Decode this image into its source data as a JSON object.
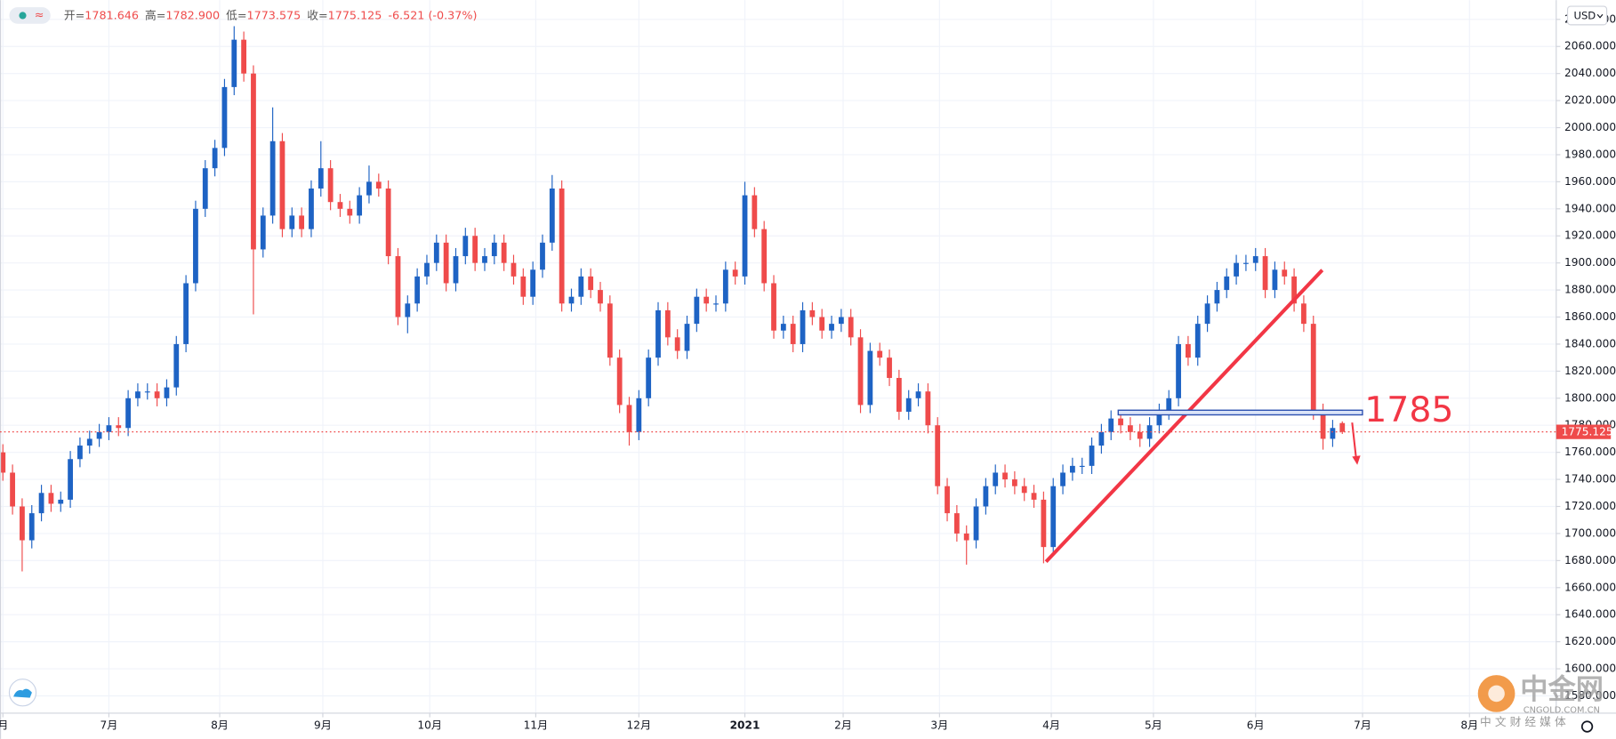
{
  "chart_data": {
    "type": "candlestick",
    "indicator_symbol": "≈",
    "header": [
      {
        "label": "开=",
        "value": "1781.646"
      },
      {
        "label": "高=",
        "value": "1782.900"
      },
      {
        "label": "低=",
        "value": "1773.575"
      },
      {
        "label": "收=",
        "value": "1775.125"
      }
    ],
    "change": "-6.521 (-0.37%)",
    "currency": "USD",
    "annotation": "1785",
    "last_price": 1775.125,
    "up_color": "#1e63c4",
    "down_color": "#ef4b4b",
    "grid": true,
    "ylim": [
      1567.2,
      2094.3
    ],
    "yticks": [
      {
        "value": 1580,
        "label": "1580.000"
      },
      {
        "value": 1600,
        "label": "1600.000"
      },
      {
        "value": 1620,
        "label": "1620.000"
      },
      {
        "value": 1640,
        "label": "1640.000"
      },
      {
        "value": 1660,
        "label": "1660.000"
      },
      {
        "value": 1680,
        "label": "1680.000"
      },
      {
        "value": 1700,
        "label": "1700.000"
      },
      {
        "value": 1720,
        "label": "1720.000"
      },
      {
        "value": 1740,
        "label": "1740.000"
      },
      {
        "value": 1760,
        "label": "1760.000"
      },
      {
        "value": 1780,
        "label": "1780.000"
      },
      {
        "value": 1800,
        "label": "1800.000"
      },
      {
        "value": 1820,
        "label": "1820.000"
      },
      {
        "value": 1840,
        "label": "1840.000"
      },
      {
        "value": 1860,
        "label": "1860.000"
      },
      {
        "value": 1880,
        "label": "1880.000"
      },
      {
        "value": 1900,
        "label": "1900.000"
      },
      {
        "value": 1920,
        "label": "1920.000"
      },
      {
        "value": 1940,
        "label": "1940.000"
      },
      {
        "value": 1960,
        "label": "1960.000"
      },
      {
        "value": 1980,
        "label": "1980.000"
      },
      {
        "value": 2000,
        "label": "2000.000"
      },
      {
        "value": 2020,
        "label": "2020.000"
      },
      {
        "value": 2040,
        "label": "2040.000"
      },
      {
        "value": 2060,
        "label": "2060.000"
      },
      {
        "value": 2080,
        "label": "2080.000"
      }
    ],
    "xlim": [
      -0.3,
      161.2
    ],
    "xticks": [
      {
        "value": 0,
        "label": "月"
      },
      {
        "value": 11,
        "label": "7月"
      },
      {
        "value": 22.5,
        "label": "8月"
      },
      {
        "value": 33.2,
        "label": "9月"
      },
      {
        "value": 44.3,
        "label": "10月"
      },
      {
        "value": 55.3,
        "label": "11月"
      },
      {
        "value": 66,
        "label": "12月"
      },
      {
        "value": 77,
        "label": "2021"
      },
      {
        "value": 87.2,
        "label": "2月"
      },
      {
        "value": 97.2,
        "label": "3月"
      },
      {
        "value": 108.8,
        "label": "4月"
      },
      {
        "value": 119.4,
        "label": "5月"
      },
      {
        "value": 130,
        "label": "6月"
      },
      {
        "value": 141.1,
        "label": "7月"
      },
      {
        "value": 152.2,
        "label": "8月"
      }
    ],
    "open": [
      1760,
      1745,
      1720,
      1695,
      1715,
      1730,
      1722,
      1725,
      1755,
      1765,
      1770,
      1775,
      1780,
      1778,
      1800,
      1805,
      1805,
      1800,
      1808,
      1840,
      1885,
      1940,
      1970,
      1985,
      2030,
      2065,
      2040,
      1910,
      1935,
      1990,
      1925,
      1935,
      1925,
      1955,
      1970,
      1945,
      1940,
      1935,
      1950,
      1960,
      1955,
      1905,
      1860,
      1870,
      1890,
      1900,
      1915,
      1885,
      1905,
      1920,
      1900,
      1905,
      1915,
      1900,
      1890,
      1875,
      1895,
      1915,
      1955,
      1870,
      1875,
      1890,
      1880,
      1870,
      1830,
      1795,
      1775,
      1800,
      1830,
      1865,
      1845,
      1835,
      1855,
      1875,
      1870,
      1870,
      1895,
      1890,
      1950,
      1925,
      1885,
      1850,
      1855,
      1840,
      1865,
      1860,
      1850,
      1855,
      1860,
      1845,
      1795,
      1835,
      1830,
      1815,
      1790,
      1800,
      1805,
      1780,
      1735,
      1715,
      1700,
      1695,
      1720,
      1735,
      1745,
      1740,
      1735,
      1730,
      1725,
      1690,
      1735,
      1745,
      1750,
      1750,
      1765,
      1775,
      1785,
      1780,
      1775,
      1770,
      1780,
      1790,
      1800,
      1840,
      1830,
      1855,
      1870,
      1880,
      1890,
      1900,
      1900,
      1905,
      1880,
      1895,
      1890,
      1870,
      1855,
      1790,
      1770,
      1781.646
    ],
    "high": [
      1766,
      1751,
      1726,
      1721,
      1736,
      1736,
      1731,
      1761,
      1771,
      1776,
      1781,
      1786,
      1786,
      1806,
      1811,
      1811,
      1811,
      1814,
      1846,
      1891,
      1946,
      1976,
      1991,
      2036,
      2075,
      2071,
      2046,
      1941,
      2015,
      1996,
      1941,
      1941,
      1961,
      1990,
      1976,
      1951,
      1946,
      1956,
      1972,
      1966,
      1961,
      1911,
      1876,
      1896,
      1906,
      1921,
      1921,
      1911,
      1926,
      1926,
      1911,
      1921,
      1921,
      1906,
      1896,
      1901,
      1921,
      1965,
      1961,
      1881,
      1896,
      1896,
      1886,
      1876,
      1836,
      1801,
      1806,
      1836,
      1871,
      1871,
      1851,
      1861,
      1881,
      1881,
      1876,
      1901,
      1901,
      1960,
      1956,
      1931,
      1891,
      1861,
      1861,
      1871,
      1871,
      1866,
      1861,
      1866,
      1866,
      1851,
      1841,
      1841,
      1836,
      1821,
      1806,
      1811,
      1811,
      1786,
      1741,
      1721,
      1706,
      1726,
      1741,
      1751,
      1751,
      1746,
      1741,
      1736,
      1731,
      1741,
      1751,
      1756,
      1756,
      1771,
      1781,
      1791,
      1791,
      1786,
      1781,
      1786,
      1796,
      1806,
      1846,
      1846,
      1861,
      1876,
      1886,
      1896,
      1906,
      1906,
      1911,
      1911,
      1901,
      1901,
      1896,
      1876,
      1861,
      1796,
      1784,
      1782.9
    ],
    "low": [
      1739,
      1714,
      1672,
      1689,
      1709,
      1716,
      1716,
      1719,
      1749,
      1759,
      1764,
      1769,
      1772,
      1772,
      1794,
      1799,
      1794,
      1794,
      1802,
      1834,
      1879,
      1934,
      1964,
      1979,
      2024,
      2034,
      1862,
      1904,
      1929,
      1919,
      1919,
      1919,
      1919,
      1949,
      1939,
      1934,
      1929,
      1929,
      1944,
      1949,
      1899,
      1854,
      1848,
      1864,
      1884,
      1894,
      1879,
      1879,
      1899,
      1894,
      1894,
      1899,
      1894,
      1884,
      1869,
      1869,
      1889,
      1909,
      1864,
      1864,
      1869,
      1874,
      1864,
      1824,
      1789,
      1765,
      1769,
      1794,
      1824,
      1839,
      1829,
      1829,
      1849,
      1864,
      1864,
      1864,
      1884,
      1884,
      1919,
      1879,
      1844,
      1844,
      1834,
      1834,
      1854,
      1844,
      1844,
      1849,
      1839,
      1789,
      1789,
      1824,
      1809,
      1784,
      1784,
      1794,
      1774,
      1729,
      1709,
      1694,
      1677,
      1689,
      1714,
      1729,
      1734,
      1729,
      1724,
      1719,
      1678,
      1684,
      1729,
      1739,
      1744,
      1744,
      1759,
      1769,
      1774,
      1769,
      1764,
      1764,
      1774,
      1784,
      1794,
      1824,
      1824,
      1849,
      1864,
      1874,
      1884,
      1894,
      1894,
      1874,
      1874,
      1884,
      1864,
      1849,
      1784,
      1762,
      1764,
      1773.575
    ],
    "close": [
      1745,
      1720,
      1695,
      1715,
      1730,
      1722,
      1725,
      1755,
      1765,
      1770,
      1775,
      1780,
      1778,
      1800,
      1805,
      1805,
      1800,
      1808,
      1840,
      1885,
      1940,
      1970,
      1985,
      2030,
      2065,
      2040,
      1910,
      1935,
      1990,
      1925,
      1935,
      1925,
      1955,
      1970,
      1945,
      1940,
      1935,
      1950,
      1960,
      1955,
      1905,
      1860,
      1870,
      1890,
      1900,
      1915,
      1885,
      1905,
      1920,
      1900,
      1905,
      1915,
      1900,
      1890,
      1875,
      1895,
      1915,
      1955,
      1870,
      1875,
      1890,
      1880,
      1870,
      1830,
      1795,
      1775,
      1800,
      1830,
      1865,
      1845,
      1835,
      1855,
      1875,
      1870,
      1870,
      1895,
      1890,
      1950,
      1925,
      1885,
      1850,
      1855,
      1840,
      1865,
      1860,
      1850,
      1855,
      1860,
      1845,
      1795,
      1835,
      1830,
      1815,
      1790,
      1800,
      1805,
      1780,
      1735,
      1715,
      1700,
      1695,
      1720,
      1735,
      1745,
      1740,
      1735,
      1730,
      1725,
      1690,
      1735,
      1745,
      1750,
      1750,
      1765,
      1775,
      1785,
      1780,
      1775,
      1770,
      1780,
      1790,
      1800,
      1840,
      1830,
      1855,
      1870,
      1880,
      1890,
      1900,
      1900,
      1905,
      1880,
      1895,
      1890,
      1870,
      1855,
      1790,
      1770,
      1778,
      1775.125
    ]
  },
  "watermark": {
    "brand": "中金网",
    "domain": "CNGOLD.COM.CN",
    "tagline": "中 文 财 经 媒 体"
  }
}
